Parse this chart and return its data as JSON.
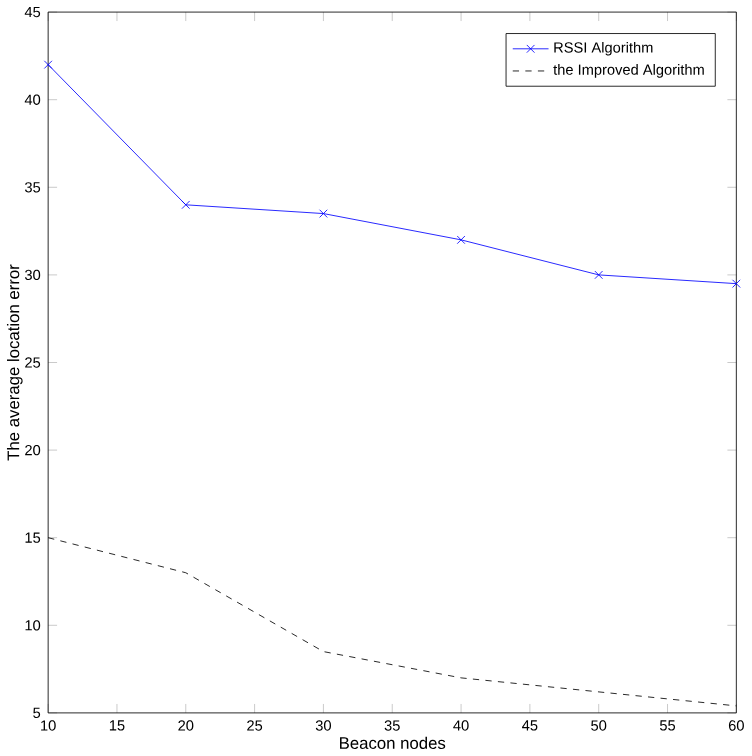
{
  "chart_data": {
    "type": "line",
    "xlabel": "Beacon nodes",
    "ylabel": "The average location error",
    "x": [
      10,
      20,
      30,
      40,
      50,
      60
    ],
    "series": [
      {
        "name": "RSSI Algorithm",
        "color": "#0000ff",
        "values": [
          42,
          34,
          33.5,
          32,
          30,
          29.5
        ],
        "marker": "cross",
        "line_style": "solid"
      },
      {
        "name": "the Improved Algorithm",
        "color": "#000000",
        "values": [
          15,
          13,
          8.5,
          7,
          6.2,
          5.4
        ],
        "marker": "none",
        "line_style": "dashed"
      }
    ],
    "xlim": [
      10,
      60
    ],
    "xticks": [
      10,
      15,
      20,
      25,
      30,
      35,
      40,
      45,
      50,
      55,
      60
    ],
    "ylim": [
      5,
      45
    ],
    "yticks": [
      5,
      10,
      15,
      20,
      25,
      30,
      35,
      40,
      45
    ],
    "grid": false,
    "legend": "top right"
  }
}
